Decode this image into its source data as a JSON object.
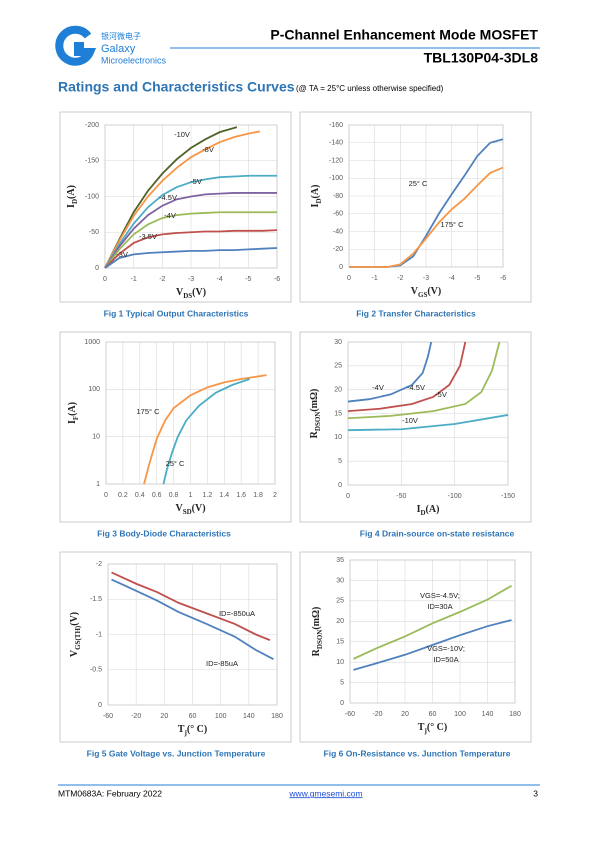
{
  "header": {
    "logo_chinese": "银河微电子",
    "logo_name": "Galaxy",
    "logo_subname": "Microelectronics",
    "title": "P-Channel Enhancement Mode MOSFET",
    "part_number": "TBL130P04-3DL8"
  },
  "section": {
    "title": "Ratings and Characteristics Curves",
    "condition": "(@ TA = 25°C unless otherwise specified)"
  },
  "chart_data": [
    {
      "type": "line",
      "caption": "Fig 1 Typical Output Characteristics",
      "x_label": [
        "V",
        "DS",
        "(V)"
      ],
      "y_label": [
        "I",
        "D",
        "(A)"
      ],
      "xlim": [
        0,
        -6
      ],
      "xticks": [
        0,
        -1,
        -2,
        -3,
        -4,
        -5,
        -6
      ],
      "ylim": [
        0,
        -200
      ],
      "yticks": [
        0,
        -50,
        -100,
        -150,
        -200
      ],
      "grid": true,
      "series": [
        {
          "name": "-10V",
          "color": "#4f6228",
          "x": [
            0,
            -0.5,
            -1,
            -1.5,
            -2,
            -2.5,
            -3,
            -3.5,
            -4,
            -4.6
          ],
          "values": [
            0,
            -40,
            -78,
            -108,
            -132,
            -152,
            -168,
            -180,
            -190,
            -197
          ]
        },
        {
          "name": "-8V",
          "color": "#f79646",
          "x": [
            0,
            -0.5,
            -1,
            -1.5,
            -2,
            -2.5,
            -3,
            -3.5,
            -4,
            -4.5,
            -5,
            -5.4
          ],
          "values": [
            0,
            -38,
            -73,
            -100,
            -122,
            -140,
            -155,
            -166,
            -176,
            -183,
            -188,
            -191
          ]
        },
        {
          "name": "-5V",
          "color": "#4bacc6",
          "x": [
            0,
            -0.5,
            -1,
            -1.5,
            -2,
            -2.5,
            -3,
            -3.5,
            -4,
            -4.5,
            -5,
            -5.5,
            -6
          ],
          "values": [
            0,
            -33,
            -62,
            -85,
            -102,
            -113,
            -120,
            -124,
            -127,
            -128,
            -129,
            -129,
            -129
          ]
        },
        {
          "name": "-4.5V",
          "color": "#8064a2",
          "x": [
            0,
            -0.5,
            -1,
            -1.5,
            -2,
            -2.5,
            -3,
            -3.5,
            -4,
            -4.5,
            -5,
            -5.5,
            -6
          ],
          "values": [
            0,
            -30,
            -55,
            -74,
            -87,
            -96,
            -100,
            -103,
            -104,
            -105,
            -105,
            -105,
            -105
          ]
        },
        {
          "name": "-4V",
          "color": "#9bbb59",
          "x": [
            0,
            -0.5,
            -1,
            -1.5,
            -2,
            -2.5,
            -3,
            -3.5,
            -4,
            -4.5,
            -5,
            -5.5,
            -6
          ],
          "values": [
            0,
            -26,
            -47,
            -61,
            -70,
            -74,
            -76,
            -77,
            -78,
            -78,
            -78,
            -78,
            -78
          ]
        },
        {
          "name": "-3.5V",
          "color": "#c0504d",
          "x": [
            0,
            -0.5,
            -1,
            -1.5,
            -2,
            -2.5,
            -3,
            -3.5,
            -4,
            -4.5,
            -5,
            -5.5,
            -6
          ],
          "values": [
            0,
            -20,
            -35,
            -43,
            -47,
            -49,
            -50,
            -51,
            -51,
            -52,
            -52,
            -52,
            -53
          ]
        },
        {
          "name": "-3V",
          "color": "#4f81bd",
          "x": [
            0,
            -0.5,
            -1,
            -1.5,
            -2,
            -2.5,
            -3,
            -3.5,
            -4,
            -4.5,
            -5,
            -5.5,
            -6
          ],
          "values": [
            0,
            -14,
            -19,
            -21,
            -22,
            -23,
            -24,
            -24,
            -25,
            -25,
            -26,
            -27,
            -28
          ]
        }
      ]
    },
    {
      "type": "line",
      "caption": "Fig 2 Transfer Characteristics",
      "x_label": [
        "V",
        "GS",
        "(V)"
      ],
      "y_label": [
        "I",
        "D",
        "(A)"
      ],
      "xlim": [
        0,
        -6
      ],
      "xticks": [
        0,
        -1,
        -2,
        -3,
        -4,
        -5,
        -6
      ],
      "ylim": [
        0,
        -160
      ],
      "yticks": [
        0,
        -20,
        -40,
        -60,
        -80,
        -100,
        -120,
        -140,
        -160
      ],
      "grid": true,
      "series": [
        {
          "name": "25° C",
          "color": "#4f81bd",
          "x": [
            0,
            -0.5,
            -1,
            -1.5,
            -2,
            -2.5,
            -3,
            -3.5,
            -4,
            -4.5,
            -5,
            -5.5,
            -6
          ],
          "values": [
            0,
            0,
            0,
            0,
            -2,
            -12,
            -35,
            -60,
            -82,
            -103,
            -125,
            -140,
            -144
          ]
        },
        {
          "name": "175° C",
          "color": "#f79646",
          "x": [
            0,
            -0.5,
            -1,
            -1.5,
            -2,
            -2.5,
            -3,
            -3.5,
            -4,
            -4.5,
            -5,
            -5.5,
            -6
          ],
          "values": [
            0,
            0,
            0,
            0,
            -3,
            -15,
            -32,
            -50,
            -65,
            -77,
            -92,
            -106,
            -112
          ]
        }
      ]
    },
    {
      "type": "line",
      "caption": "Fig 3 Body-Diode Characteristics",
      "x_label": [
        "V",
        "SD",
        "(V)"
      ],
      "y_label": [
        "I",
        "F",
        "(A)"
      ],
      "xlim": [
        0,
        2
      ],
      "xticks": [
        0,
        0.2,
        0.4,
        0.6,
        0.8,
        1,
        1.2,
        1.4,
        1.6,
        1.8,
        2
      ],
      "ylim": [
        1,
        1000
      ],
      "yticks": [
        1,
        10,
        100,
        1000
      ],
      "ylog": true,
      "grid": true,
      "series": [
        {
          "name": "175° C",
          "color": "#f79646",
          "x": [
            0.45,
            0.5,
            0.55,
            0.6,
            0.7,
            0.8,
            1.0,
            1.2,
            1.4,
            1.6,
            1.9
          ],
          "values": [
            1,
            2.2,
            4.5,
            9,
            22,
            40,
            75,
            110,
            140,
            165,
            200
          ]
        },
        {
          "name": "25° C",
          "color": "#4bacc6",
          "x": [
            0.68,
            0.72,
            0.78,
            0.85,
            0.95,
            1.1,
            1.3,
            1.5,
            1.7
          ],
          "values": [
            1,
            2,
            4.5,
            10,
            22,
            45,
            85,
            125,
            165
          ]
        }
      ]
    },
    {
      "type": "line",
      "caption": "Fig 4 Drain-source on-state resistance",
      "x_label": [
        "I",
        "D",
        "(A)"
      ],
      "y_label": [
        "R",
        "DSON",
        "(mΩ)"
      ],
      "xlim": [
        0,
        -150
      ],
      "xticks": [
        0,
        -50,
        -100,
        -150
      ],
      "ylim": [
        0,
        30
      ],
      "yticks": [
        0,
        5,
        10,
        15,
        20,
        25,
        30
      ],
      "grid": true,
      "series": [
        {
          "name": "-4V",
          "color": "#4f81bd",
          "x": [
            0,
            -20,
            -40,
            -60,
            -70,
            -75,
            -78
          ],
          "values": [
            17.5,
            18,
            19,
            21,
            23.5,
            27,
            30
          ]
        },
        {
          "name": "-4.5V",
          "color": "#c0504d",
          "x": [
            0,
            -30,
            -60,
            -80,
            -95,
            -105,
            -110
          ],
          "values": [
            15.5,
            16,
            17,
            18.5,
            21,
            25,
            30
          ]
        },
        {
          "name": "-5V",
          "color": "#9bbb59",
          "x": [
            0,
            -40,
            -80,
            -110,
            -125,
            -135,
            -142
          ],
          "values": [
            14,
            14.5,
            15.5,
            17,
            19.5,
            24,
            30
          ]
        },
        {
          "name": "-10V",
          "color": "#4bacc6",
          "x": [
            0,
            -50,
            -100,
            -150
          ],
          "values": [
            11.5,
            11.7,
            12.8,
            14.7
          ]
        }
      ]
    },
    {
      "type": "line",
      "caption": "Fig 5 Gate Voltage vs. Junction Temperature",
      "x_label": [
        "T",
        "j",
        "(° C)"
      ],
      "y_label": [
        "V",
        "GS(TH)",
        "(V)"
      ],
      "xlim": [
        -60,
        180
      ],
      "xticks": [
        -60,
        -20,
        20,
        60,
        100,
        140,
        180
      ],
      "ylim": [
        0,
        -2
      ],
      "yticks": [
        0,
        -0.5,
        -1,
        -1.5,
        -2
      ],
      "grid": true,
      "series": [
        {
          "name": [
            "ID=-850uA"
          ],
          "color": "#c0504d",
          "x": [
            -55,
            -20,
            10,
            40,
            80,
            120,
            150,
            170
          ],
          "values": [
            -1.88,
            -1.72,
            -1.6,
            -1.45,
            -1.3,
            -1.15,
            -1.0,
            -0.92
          ]
        },
        {
          "name": [
            "ID=-85uA"
          ],
          "color": "#4f81bd",
          "x": [
            -55,
            -20,
            10,
            40,
            80,
            120,
            150,
            175
          ],
          "values": [
            -1.78,
            -1.62,
            -1.48,
            -1.32,
            -1.15,
            -0.97,
            -0.78,
            -0.65
          ]
        }
      ]
    },
    {
      "type": "line",
      "caption": "Fig 6 On-Resistance vs. Junction Temperature",
      "x_label": [
        "T",
        "j",
        "(° C)"
      ],
      "y_label": [
        "R",
        "DSON",
        "(mΩ)"
      ],
      "xlim": [
        -60,
        180
      ],
      "xticks": [
        -60,
        -20,
        20,
        60,
        100,
        140,
        180
      ],
      "ylim": [
        0,
        35
      ],
      "yticks": [
        0,
        5,
        10,
        15,
        20,
        25,
        30,
        35
      ],
      "grid": true,
      "series": [
        {
          "name": [
            "VGS=-4.5V;",
            "ID=30A"
          ],
          "color": "#9bbb59",
          "x": [
            -55,
            -20,
            20,
            60,
            100,
            140,
            175
          ],
          "values": [
            10.8,
            13.5,
            16.3,
            19.5,
            22.3,
            25.3,
            28.7
          ]
        },
        {
          "name": [
            "VGS=-10V;",
            "ID=50A"
          ],
          "color": "#4f81bd",
          "x": [
            -55,
            -20,
            20,
            60,
            100,
            140,
            175
          ],
          "values": [
            8.1,
            9.8,
            11.8,
            14.2,
            16.6,
            18.8,
            20.3
          ]
        }
      ]
    }
  ],
  "footer": {
    "doc_id": "MTM0683A: February 2022",
    "website": "www.gmesemi.com",
    "page": "3"
  }
}
